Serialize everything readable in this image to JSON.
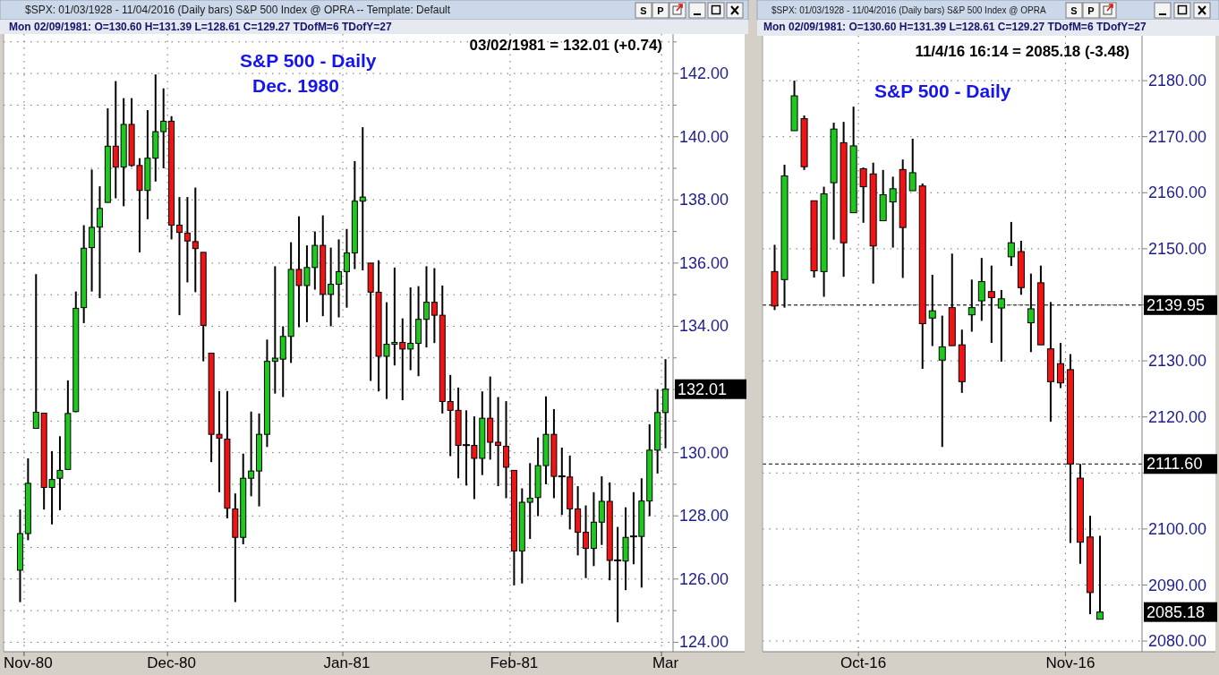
{
  "chart_data": [
    {
      "type": "candlestick",
      "title": "S&P 500 - Daily",
      "subtitle": "Dec. 1980",
      "categories": [
        null,
        "Nov-80",
        null,
        null,
        null,
        null,
        null,
        null,
        null,
        null,
        null,
        null,
        null,
        null,
        null,
        null,
        null,
        null,
        null,
        "Dec-80",
        null,
        null,
        null,
        null,
        null,
        null,
        null,
        null,
        null,
        null,
        null,
        null,
        null,
        null,
        null,
        null,
        null,
        null,
        null,
        null,
        null,
        "Jan-81",
        null,
        null,
        null,
        null,
        null,
        null,
        null,
        null,
        null,
        null,
        null,
        null,
        null,
        null,
        null,
        null,
        null,
        null,
        null,
        null,
        "Feb-81",
        null,
        null,
        null,
        null,
        null,
        null,
        null,
        null,
        null,
        null,
        null,
        null,
        null,
        null,
        null,
        null,
        null,
        null,
        "Mar"
      ],
      "ohlc": [
        [
          126.28,
          128.2,
          125.27,
          127.44
        ],
        [
          127.44,
          129.82,
          127.23,
          129.03
        ],
        [
          130.77,
          135.65,
          130.77,
          131.28
        ],
        [
          131.25,
          131.25,
          128.2,
          128.9
        ],
        [
          128.9,
          130.05,
          127.73,
          129.15
        ],
        [
          129.19,
          130.52,
          128.18,
          129.44
        ],
        [
          129.47,
          132.29,
          129.47,
          131.24
        ],
        [
          131.3,
          135.1,
          131.28,
          134.57
        ],
        [
          134.59,
          137.2,
          134.1,
          136.47
        ],
        [
          136.49,
          138.96,
          135.1,
          137.13
        ],
        [
          137.14,
          138.43,
          134.89,
          137.73
        ],
        [
          137.92,
          140.9,
          137.92,
          139.7
        ],
        [
          139.7,
          141.76,
          138.05,
          139.04
        ],
        [
          139.04,
          141.22,
          137.8,
          140.39
        ],
        [
          140.39,
          141.22,
          139.05,
          139.09
        ],
        [
          139.09,
          139.32,
          136.34,
          138.3
        ],
        [
          138.3,
          140.84,
          137.39,
          139.32
        ],
        [
          139.32,
          141.97,
          138.58,
          140.16
        ],
        [
          140.16,
          141.53,
          139.0,
          140.49
        ],
        [
          140.49,
          140.65,
          136.75,
          137.2
        ],
        [
          137.2,
          138.09,
          134.35,
          136.97
        ],
        [
          136.95,
          138.09,
          135.39,
          136.7
        ],
        [
          136.68,
          138.39,
          135.08,
          136.46
        ],
        [
          136.34,
          136.34,
          132.89,
          134.03
        ],
        [
          133.15,
          133.15,
          129.7,
          130.58
        ],
        [
          130.58,
          131.95,
          128.75,
          130.46
        ],
        [
          130.43,
          131.95,
          127.92,
          128.24
        ],
        [
          128.22,
          128.71,
          125.27,
          127.32
        ],
        [
          127.32,
          129.97,
          127.1,
          129.19
        ],
        [
          129.19,
          131.3,
          128.62,
          129.42
        ],
        [
          129.42,
          131.24,
          128.3,
          130.58
        ],
        [
          130.58,
          133.58,
          130.18,
          132.89
        ],
        [
          132.89,
          135.9,
          131.87,
          132.99
        ],
        [
          132.96,
          134.0,
          131.76,
          133.68
        ],
        [
          133.68,
          136.66,
          132.84,
          135.8
        ],
        [
          135.8,
          137.48,
          133.97,
          135.29
        ],
        [
          135.29,
          136.56,
          134.13,
          135.86
        ],
        [
          135.86,
          137.0,
          135.16,
          136.56
        ],
        [
          136.56,
          137.51,
          134.32,
          135.01
        ],
        [
          135.01,
          136.49,
          134.0,
          135.33
        ],
        [
          135.33,
          136.75,
          134.28,
          135.73
        ],
        [
          135.73,
          137.08,
          134.59,
          136.32
        ],
        [
          136.32,
          139.23,
          135.81,
          137.96
        ],
        [
          137.96,
          140.3,
          135.77,
          138.09
        ],
        [
          136.0,
          136.0,
          132.27,
          135.08
        ],
        [
          135.08,
          136.09,
          131.94,
          133.05
        ],
        [
          133.05,
          134.76,
          131.7,
          133.43
        ],
        [
          133.43,
          135.86,
          132.76,
          133.49
        ],
        [
          133.49,
          134.25,
          131.66,
          133.28
        ],
        [
          133.28,
          135.23,
          132.61,
          133.46
        ],
        [
          133.46,
          135.27,
          132.42,
          134.22
        ],
        [
          134.22,
          135.9,
          133.33,
          134.76
        ],
        [
          134.76,
          135.84,
          133.47,
          134.35
        ],
        [
          134.35,
          135.29,
          131.24,
          131.62
        ],
        [
          131.62,
          132.46,
          129.89,
          131.34
        ],
        [
          131.34,
          132.06,
          129.19,
          130.23
        ],
        [
          130.24,
          131.34,
          128.96,
          130.24
        ],
        [
          130.23,
          131.15,
          128.53,
          129.82
        ],
        [
          129.82,
          131.94,
          129.29,
          131.09
        ],
        [
          131.09,
          132.41,
          129.78,
          130.33
        ],
        [
          130.33,
          131.76,
          128.94,
          130.23
        ],
        [
          130.2,
          131.63,
          128.56,
          129.54
        ],
        [
          129.44,
          129.44,
          125.8,
          126.89
        ],
        [
          126.89,
          128.87,
          125.86,
          128.43
        ],
        [
          128.43,
          129.67,
          127.27,
          128.56
        ],
        [
          128.58,
          130.48,
          127.99,
          129.59
        ],
        [
          129.59,
          131.78,
          129.0,
          130.58
        ],
        [
          130.58,
          131.38,
          128.56,
          129.25
        ],
        [
          129.25,
          130.16,
          128.03,
          129.25
        ],
        [
          129.23,
          129.91,
          127.57,
          128.22
        ],
        [
          128.22,
          128.94,
          126.75,
          127.48
        ],
        [
          127.48,
          128.33,
          126.03,
          126.97
        ],
        [
          126.97,
          128.75,
          126.41,
          127.8
        ],
        [
          127.8,
          129.25,
          127.08,
          128.46
        ],
        [
          128.46,
          129.06,
          125.96,
          126.59
        ],
        [
          126.59,
          127.65,
          124.63,
          126.59
        ],
        [
          126.57,
          128.27,
          125.65,
          127.32
        ],
        [
          127.35,
          128.75,
          126.47,
          127.35
        ],
        [
          127.35,
          129.19,
          125.73,
          128.47
        ],
        [
          128.47,
          130.9,
          127.99,
          130.08
        ],
        [
          130.08,
          132.01,
          129.34,
          131.27
        ],
        [
          131.27,
          132.96,
          130.14,
          132.01
        ]
      ],
      "colors": [
        "#1ec81e",
        "#1ec81e",
        "#1ec81e",
        "#f01414",
        "#1ec81e",
        "#1ec81e",
        "#1ec81e",
        "#1ec81e",
        "#1ec81e",
        "#1ec81e",
        "#1ec81e",
        "#1ec81e",
        "#f01414",
        "#1ec81e",
        "#f01414",
        "#f01414",
        "#1ec81e",
        "#1ec81e",
        "#1ec81e",
        "#f01414",
        "#f01414",
        "#f01414",
        "#f01414",
        "#f01414",
        "#f01414",
        "#f01414",
        "#f01414",
        "#f01414",
        "#1ec81e",
        "#1ec81e",
        "#1ec81e",
        "#1ec81e",
        "#1ec81e",
        "#1ec81e",
        "#1ec81e",
        "#f01414",
        "#1ec81e",
        "#1ec81e",
        "#f01414",
        "#1ec81e",
        "#1ec81e",
        "#1ec81e",
        "#1ec81e",
        "#1ec81e",
        "#f01414",
        "#f01414",
        "#1ec81e",
        "#1ec81e",
        "#f01414",
        "#1ec81e",
        "#1ec81e",
        "#1ec81e",
        "#f01414",
        "#f01414",
        "#f01414",
        "#f01414",
        "#000000",
        "#f01414",
        "#1ec81e",
        "#f01414",
        "#f01414",
        "#f01414",
        "#f01414",
        "#1ec81e",
        "#1ec81e",
        "#1ec81e",
        "#1ec81e",
        "#f01414",
        "#000000",
        "#f01414",
        "#f01414",
        "#f01414",
        "#1ec81e",
        "#1ec81e",
        "#f01414",
        "#000000",
        "#1ec81e",
        "#000000",
        "#1ec81e",
        "#1ec81e",
        "#1ec81e",
        "#1ec81e"
      ],
      "ylim": [
        123.7,
        143.25
      ],
      "yticks": [
        {
          "value": 124,
          "label": "124.00"
        },
        {
          "value": 125,
          "label": null
        },
        {
          "value": 126,
          "label": "126.00"
        },
        {
          "value": 127,
          "label": null
        },
        {
          "value": 128,
          "label": "128.00"
        },
        {
          "value": 129,
          "label": null
        },
        {
          "value": 130,
          "label": "130.00"
        },
        {
          "value": 131,
          "label": null
        },
        {
          "value": 132,
          "label": null
        },
        {
          "value": 133,
          "label": null
        },
        {
          "value": 134,
          "label": "134.00"
        },
        {
          "value": 135,
          "label": null
        },
        {
          "value": 136,
          "label": "136.00"
        },
        {
          "value": 137,
          "label": null
        },
        {
          "value": 138,
          "label": "138.00"
        },
        {
          "value": 139,
          "label": null
        },
        {
          "value": 140,
          "label": "140.00"
        },
        {
          "value": 141,
          "label": null
        },
        {
          "value": 142,
          "label": "142.00"
        },
        {
          "value": 143,
          "label": null
        }
      ],
      "grid": true,
      "annotations": [
        "$SPX: 01/03/1928 - 11/04/2016 (Daily bars) S&P 500 Index @ OPRA -- Template: Default",
        "Mon 02/09/1981: O=130.60 H=131.39 L=128.61 C=129.27 TDofM=6 TDofY=27",
        "03/02/1981 = 132.01 (+0.74)",
        "132.01",
        "S",
        "P"
      ]
    },
    {
      "type": "candlestick",
      "title": "S&P 500 - Daily",
      "categories": [
        null,
        null,
        null,
        null,
        null,
        null,
        null,
        null,
        null,
        "Oct-16",
        null,
        null,
        null,
        null,
        null,
        null,
        null,
        null,
        null,
        null,
        null,
        null,
        null,
        null,
        null,
        null,
        null,
        null,
        null,
        null,
        "Nov-16",
        null,
        null,
        null
      ],
      "ohlc": [
        [
          2145.93,
          2150.71,
          2139.07,
          2139.79
        ],
        [
          2144.5,
          2165.0,
          2139.5,
          2163.0
        ],
        [
          2171.07,
          2180.0,
          2171.07,
          2177.29
        ],
        [
          2173.21,
          2173.79,
          2164.07,
          2164.64
        ],
        [
          2158.57,
          2158.57,
          2144.86,
          2146.07
        ],
        [
          2145.93,
          2161.07,
          2141.43,
          2159.79
        ],
        [
          2161.79,
          2172.5,
          2151.64,
          2171.36
        ],
        [
          2168.93,
          2172.64,
          2145.0,
          2151.07
        ],
        [
          2156.43,
          2175.36,
          2156.43,
          2168.36
        ],
        [
          2164.29,
          2164.5,
          2154.64,
          2161.07
        ],
        [
          2163.36,
          2165.36,
          2143.79,
          2150.5
        ],
        [
          2155.0,
          2164.07,
          2155.0,
          2159.64
        ],
        [
          2158.36,
          2162.86,
          2150.21,
          2160.71
        ],
        [
          2164.14,
          2165.93,
          2144.79,
          2153.79
        ],
        [
          2160.36,
          2169.64,
          2160.36,
          2163.57
        ],
        [
          2161.21,
          2161.64,
          2128.57,
          2136.64
        ],
        [
          2137.64,
          2145.36,
          2132.64,
          2138.93
        ],
        [
          2130.14,
          2138.07,
          2114.64,
          2132.5
        ],
        [
          2139.5,
          2149.14,
          2132.71,
          2132.71
        ],
        [
          2132.86,
          2135.57,
          2124.29,
          2126.29
        ],
        [
          2138.21,
          2144.5,
          2135.21,
          2139.5
        ],
        [
          2140.71,
          2148.36,
          2137.14,
          2144.14
        ],
        [
          2142.36,
          2147.0,
          2133.21,
          2141.29
        ],
        [
          2139.43,
          2142.64,
          2129.86,
          2141.07
        ],
        [
          2148.57,
          2154.79,
          2146.93,
          2151.07
        ],
        [
          2149.5,
          2151.43,
          2141.79,
          2143.07
        ],
        [
          2136.79,
          2145.57,
          2131.57,
          2139.29
        ],
        [
          2143.93,
          2147.0,
          2132.86,
          2132.86
        ],
        [
          2132.14,
          2140.5,
          2119.14,
          2126.29
        ],
        [
          2129.5,
          2133.21,
          2125.14,
          2126.07
        ],
        [
          2128.43,
          2131.21,
          2097.5,
          2111.6
        ],
        [
          2109.07,
          2111.6,
          2093.79,
          2097.64
        ],
        [
          2098.57,
          2102.36,
          2084.79,
          2088.66
        ],
        [
          2083.9,
          2098.79,
          2083.9,
          2085.18
        ]
      ],
      "colors": [
        "#f01414",
        "#1ec81e",
        "#1ec81e",
        "#f01414",
        "#f01414",
        "#1ec81e",
        "#1ec81e",
        "#f01414",
        "#1ec81e",
        "#f01414",
        "#f01414",
        "#1ec81e",
        "#1ec81e",
        "#f01414",
        "#1ec81e",
        "#f01414",
        "#1ec81e",
        "#1ec81e",
        "#f01414",
        "#f01414",
        "#1ec81e",
        "#1ec81e",
        "#f01414",
        "#1ec81e",
        "#1ec81e",
        "#f01414",
        "#1ec81e",
        "#f01414",
        "#f01414",
        "#f01414",
        "#f01414",
        "#f01414",
        "#f01414",
        "#1ec81e"
      ],
      "ylim": [
        2078.1,
        2188
      ],
      "yticks": [
        {
          "value": 2080,
          "label": "2080.00"
        },
        {
          "value": 2090,
          "label": "2090.00"
        },
        {
          "value": 2100,
          "label": "2100.00"
        },
        {
          "value": 2110,
          "label": null
        },
        {
          "value": 2120,
          "label": "2120.00"
        },
        {
          "value": 2130,
          "label": "2130.00"
        },
        {
          "value": 2140,
          "label": null
        },
        {
          "value": 2150,
          "label": "2150.00"
        },
        {
          "value": 2160,
          "label": "2160.00"
        },
        {
          "value": 2170,
          "label": "2170.00"
        },
        {
          "value": 2180,
          "label": "2180.00"
        }
      ],
      "grid": true,
      "ref_lines": [
        {
          "axis": "y",
          "value": 2139.95,
          "label": "2139.95",
          "color": "#000000",
          "line_style": "dashed"
        },
        {
          "axis": "y",
          "value": 2111.6,
          "label": "2111.60",
          "color": "#000000",
          "line_style": "dashed"
        }
      ],
      "annotations": [
        "$SPX: 01/03/1928 - 11/04/2016 (Daily bars) S&P 500 Index @ OPRA",
        "Mon 02/09/1981: O=130.60 H=131.39 L=128.61 C=129.27 TDofM=6 TDofY=27",
        "11/4/16 16:14 = 2085.18 (-3.48)",
        "2085.18",
        "S",
        "P"
      ]
    }
  ]
}
